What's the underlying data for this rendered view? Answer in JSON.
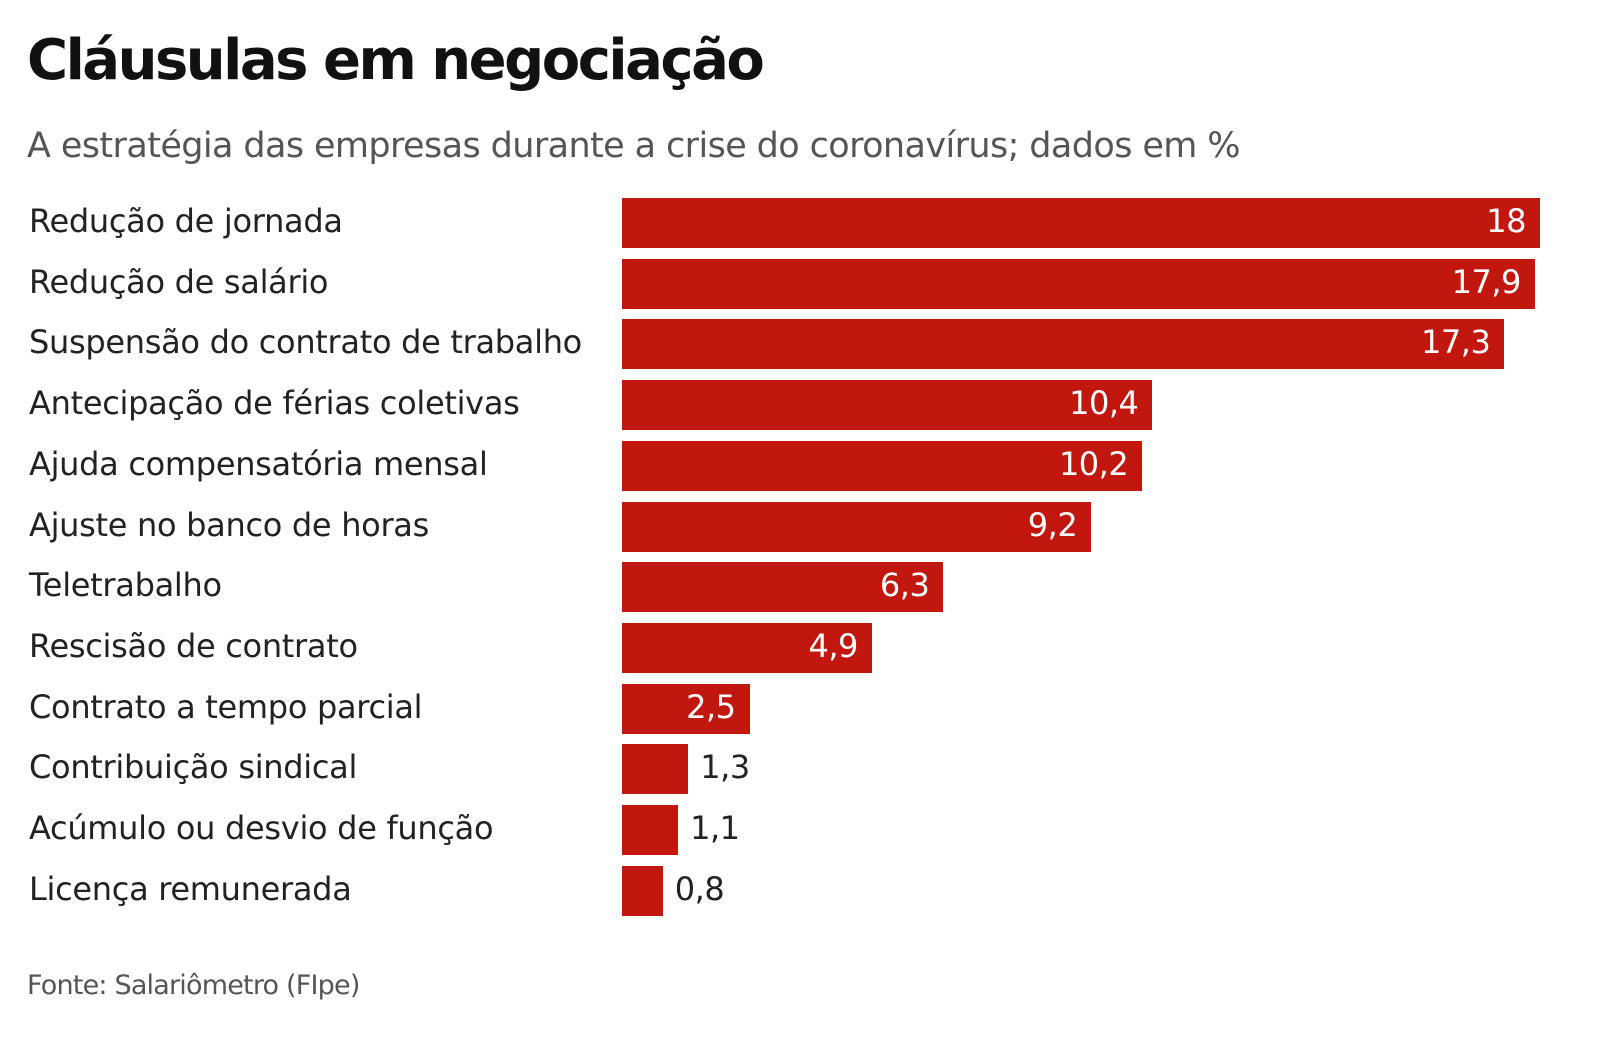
{
  "chart_data": {
    "type": "bar",
    "orientation": "horizontal",
    "title": "Cláusulas em negociação",
    "subtitle": "A estratégia das empresas durante a crise do coronavírus; dados em %",
    "categories": [
      "Redução de jornada",
      "Redução de salário",
      "Suspensão do contrato de trabalho",
      "Antecipação de férias coletivas",
      "Ajuda compensatória mensal",
      "Ajuste no banco de horas",
      "Teletrabalho",
      "Rescisão de contrato",
      "Contrato a tempo parcial",
      "Contribuição sindical",
      "Acúmulo ou desvio de função",
      "Licença remunerada"
    ],
    "values": [
      18,
      17.9,
      17.3,
      10.4,
      10.2,
      9.2,
      6.3,
      4.9,
      2.5,
      1.3,
      1.1,
      0.8
    ],
    "value_labels": [
      "18",
      "17,9",
      "17,3",
      "10,4",
      "10,2",
      "9,2",
      "6,3",
      "4,9",
      "2,5",
      "1,3",
      "1,1",
      "0,8"
    ],
    "xlim": [
      0,
      18
    ],
    "grid": false,
    "bar_color": "#c2170e",
    "source": "Fonte: Salariômetro (FIpe)"
  }
}
